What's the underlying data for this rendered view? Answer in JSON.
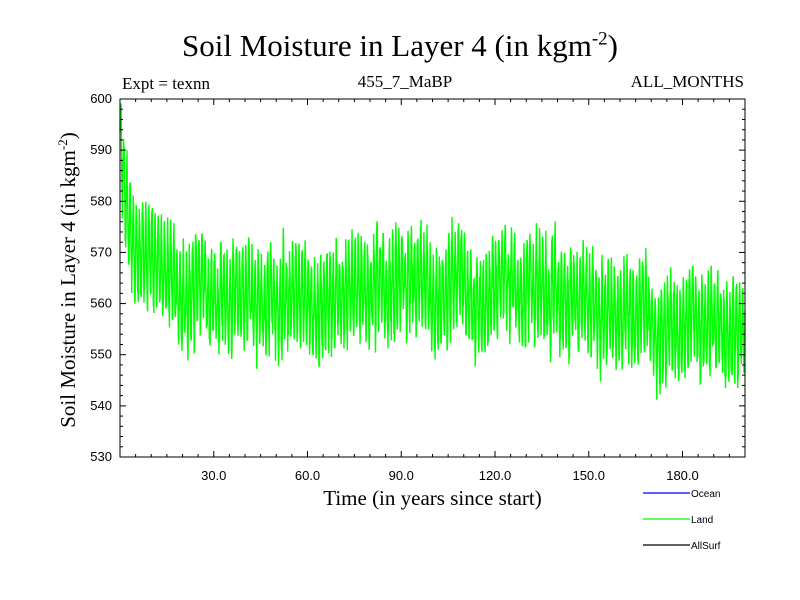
{
  "chart_data": {
    "type": "line",
    "title": "Soil Moisture in Layer 4 (in kgm",
    "title_superscript": "-2",
    "title_suffix": ")",
    "expt_label": "Expt = texnn",
    "subtitle_center": "455_7_MaBP",
    "subtitle_right": "ALL_MONTHS",
    "xlabel": "Time (in years since start)",
    "ylabel": "Soil Moisture in Layer 4 (in kgm",
    "ylabel_superscript": "-2",
    "ylabel_suffix": ")",
    "xlim": [
      0,
      200
    ],
    "ylim": [
      530,
      600
    ],
    "x_ticks": [
      30,
      60,
      90,
      120,
      150,
      180
    ],
    "x_tick_labels": [
      "30.0",
      "60.0",
      "90.0",
      "120.0",
      "150.0",
      "180.0"
    ],
    "y_ticks": [
      530,
      540,
      550,
      560,
      570,
      580,
      590,
      600
    ],
    "y_tick_labels": [
      "530",
      "540",
      "550",
      "560",
      "570",
      "580",
      "590",
      "600"
    ],
    "legend": [
      "Ocean",
      "Land",
      "AllSurf"
    ],
    "series": [
      {
        "name": "Land",
        "color": "#00ff00",
        "description": "monthly values oscillating with ~12-month period",
        "trend_x": [
          0,
          1,
          2,
          3,
          5,
          8,
          12,
          20,
          30,
          45,
          60,
          75,
          90,
          105,
          120,
          135,
          150,
          165,
          180,
          190,
          200
        ],
        "trend_y": [
          592,
          586,
          580,
          574,
          569,
          566,
          563,
          562,
          562,
          562,
          561,
          562,
          563,
          562,
          561,
          562,
          559,
          557,
          556,
          555,
          554
        ],
        "amplitude_range": [
          6,
          11
        ],
        "y_min_observed": 538,
        "y_max_observed": 599
      }
    ],
    "colors": {
      "Ocean": "#0000ff",
      "Land": "#00ff00",
      "AllSurf": "#000000"
    }
  }
}
